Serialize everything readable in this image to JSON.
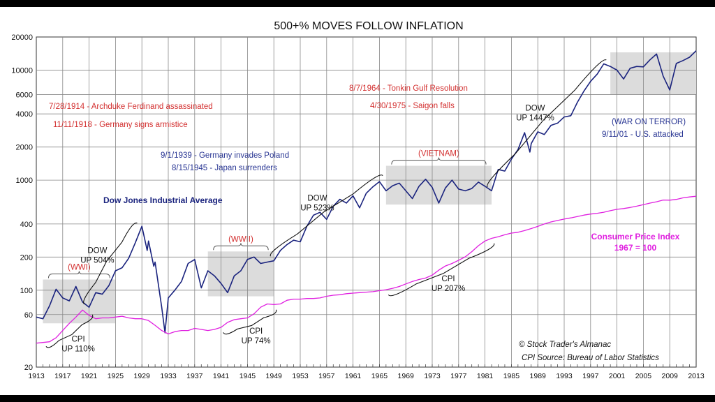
{
  "chart_data": {
    "type": "line",
    "title": "500+% MOVES FOLLOW INFLATION",
    "y_scale": "log",
    "ylim": [
      20,
      20000
    ],
    "xlim": [
      1913,
      2013
    ],
    "grid": true,
    "y_ticks": [
      20,
      60,
      100,
      200,
      400,
      1000,
      2000,
      4000,
      6000,
      10000,
      20000
    ],
    "x_ticks": [
      1913,
      1917,
      1921,
      1925,
      1929,
      1933,
      1937,
      1941,
      1945,
      1949,
      1953,
      1957,
      1961,
      1965,
      1969,
      1973,
      1977,
      1981,
      1985,
      1989,
      1993,
      1997,
      2001,
      2005,
      2009,
      2013
    ],
    "series": [
      {
        "name": "Dow Jones Industrial Average",
        "color": "#1a237e",
        "points": [
          [
            1913,
            57
          ],
          [
            1914,
            55
          ],
          [
            1915,
            72
          ],
          [
            1916,
            102
          ],
          [
            1917,
            85
          ],
          [
            1918,
            80
          ],
          [
            1919,
            108
          ],
          [
            1920,
            78
          ],
          [
            1921,
            70
          ],
          [
            1922,
            95
          ],
          [
            1923,
            92
          ],
          [
            1924,
            110
          ],
          [
            1925,
            150
          ],
          [
            1926,
            160
          ],
          [
            1927,
            195
          ],
          [
            1928,
            270
          ],
          [
            1929,
            381
          ],
          [
            1929.8,
            230
          ],
          [
            1930,
            280
          ],
          [
            1930.8,
            165
          ],
          [
            1931,
            180
          ],
          [
            1932,
            70
          ],
          [
            1932.5,
            41
          ],
          [
            1933,
            85
          ],
          [
            1934,
            100
          ],
          [
            1935,
            120
          ],
          [
            1936,
            175
          ],
          [
            1937,
            190
          ],
          [
            1938,
            105
          ],
          [
            1939,
            150
          ],
          [
            1940,
            135
          ],
          [
            1941,
            115
          ],
          [
            1942,
            95
          ],
          [
            1943,
            135
          ],
          [
            1944,
            150
          ],
          [
            1945,
            190
          ],
          [
            1946,
            200
          ],
          [
            1947,
            175
          ],
          [
            1948,
            180
          ],
          [
            1949,
            185
          ],
          [
            1950,
            230
          ],
          [
            1951,
            260
          ],
          [
            1952,
            285
          ],
          [
            1953,
            275
          ],
          [
            1954,
            380
          ],
          [
            1955,
            480
          ],
          [
            1956,
            510
          ],
          [
            1957,
            440
          ],
          [
            1958,
            580
          ],
          [
            1959,
            670
          ],
          [
            1960,
            620
          ],
          [
            1961,
            720
          ],
          [
            1962,
            560
          ],
          [
            1963,
            760
          ],
          [
            1964,
            870
          ],
          [
            1965,
            970
          ],
          [
            1966,
            800
          ],
          [
            1967,
            890
          ],
          [
            1968,
            940
          ],
          [
            1969,
            800
          ],
          [
            1970,
            680
          ],
          [
            1971,
            880
          ],
          [
            1972,
            1020
          ],
          [
            1973,
            860
          ],
          [
            1974,
            620
          ],
          [
            1975,
            850
          ],
          [
            1976,
            1000
          ],
          [
            1977,
            830
          ],
          [
            1978,
            800
          ],
          [
            1979,
            840
          ],
          [
            1980,
            960
          ],
          [
            1981,
            880
          ],
          [
            1982,
            800
          ],
          [
            1983,
            1250
          ],
          [
            1984,
            1210
          ],
          [
            1985,
            1550
          ],
          [
            1986,
            1900
          ],
          [
            1987,
            2700
          ],
          [
            1987.8,
            1800
          ],
          [
            1988,
            2150
          ],
          [
            1989,
            2750
          ],
          [
            1990,
            2600
          ],
          [
            1991,
            3150
          ],
          [
            1992,
            3300
          ],
          [
            1993,
            3750
          ],
          [
            1994,
            3850
          ],
          [
            1995,
            5100
          ],
          [
            1996,
            6450
          ],
          [
            1997,
            7900
          ],
          [
            1998,
            9200
          ],
          [
            1999,
            11400
          ],
          [
            2000,
            10800
          ],
          [
            2001,
            10000
          ],
          [
            2002,
            8300
          ],
          [
            2003,
            10400
          ],
          [
            2004,
            10800
          ],
          [
            2005,
            10700
          ],
          [
            2006,
            12400
          ],
          [
            2007,
            14000
          ],
          [
            2008,
            8800
          ],
          [
            2009,
            6600
          ],
          [
            2010,
            11500
          ],
          [
            2011,
            12200
          ],
          [
            2012,
            13100
          ],
          [
            2013,
            15000
          ]
        ]
      },
      {
        "name": "Consumer Price Index",
        "color": "#e020e0",
        "points": [
          [
            1913,
            33
          ],
          [
            1914,
            33.5
          ],
          [
            1915,
            34
          ],
          [
            1916,
            37
          ],
          [
            1917,
            43
          ],
          [
            1918,
            50
          ],
          [
            1919,
            57
          ],
          [
            1920,
            66
          ],
          [
            1921,
            59
          ],
          [
            1922,
            55
          ],
          [
            1923,
            56
          ],
          [
            1924,
            56
          ],
          [
            1925,
            57
          ],
          [
            1926,
            58
          ],
          [
            1927,
            56
          ],
          [
            1928,
            55
          ],
          [
            1929,
            55
          ],
          [
            1930,
            53
          ],
          [
            1931,
            48
          ],
          [
            1932,
            43
          ],
          [
            1933,
            40
          ],
          [
            1934,
            42
          ],
          [
            1935,
            43
          ],
          [
            1936,
            43
          ],
          [
            1937,
            45
          ],
          [
            1938,
            44
          ],
          [
            1939,
            43
          ],
          [
            1940,
            44
          ],
          [
            1941,
            46
          ],
          [
            1942,
            51
          ],
          [
            1943,
            54
          ],
          [
            1944,
            55
          ],
          [
            1945,
            56
          ],
          [
            1946,
            61
          ],
          [
            1947,
            70
          ],
          [
            1948,
            75
          ],
          [
            1949,
            74
          ],
          [
            1950,
            75
          ],
          [
            1951,
            81
          ],
          [
            1952,
            83
          ],
          [
            1953,
            83
          ],
          [
            1954,
            84
          ],
          [
            1955,
            84
          ],
          [
            1956,
            85
          ],
          [
            1957,
            88
          ],
          [
            1958,
            90
          ],
          [
            1959,
            91
          ],
          [
            1960,
            93
          ],
          [
            1961,
            94
          ],
          [
            1962,
            95
          ],
          [
            1963,
            96
          ],
          [
            1964,
            97
          ],
          [
            1965,
            99
          ],
          [
            1966,
            101
          ],
          [
            1967,
            104
          ],
          [
            1968,
            108
          ],
          [
            1969,
            114
          ],
          [
            1970,
            120
          ],
          [
            1971,
            125
          ],
          [
            1972,
            129
          ],
          [
            1973,
            137
          ],
          [
            1974,
            152
          ],
          [
            1975,
            166
          ],
          [
            1976,
            175
          ],
          [
            1977,
            187
          ],
          [
            1978,
            201
          ],
          [
            1979,
            224
          ],
          [
            1980,
            254
          ],
          [
            1981,
            280
          ],
          [
            1982,
            296
          ],
          [
            1983,
            306
          ],
          [
            1984,
            319
          ],
          [
            1985,
            330
          ],
          [
            1986,
            336
          ],
          [
            1987,
            348
          ],
          [
            1988,
            363
          ],
          [
            1989,
            380
          ],
          [
            1990,
            400
          ],
          [
            1991,
            417
          ],
          [
            1992,
            430
          ],
          [
            1993,
            443
          ],
          [
            1994,
            454
          ],
          [
            1995,
            467
          ],
          [
            1996,
            481
          ],
          [
            1997,
            492
          ],
          [
            1998,
            500
          ],
          [
            1999,
            511
          ],
          [
            2000,
            528
          ],
          [
            2001,
            543
          ],
          [
            2002,
            552
          ],
          [
            2003,
            564
          ],
          [
            2004,
            580
          ],
          [
            2005,
            599
          ],
          [
            2006,
            619
          ],
          [
            2007,
            636
          ],
          [
            2008,
            660
          ],
          [
            2009,
            658
          ],
          [
            2010,
            669
          ],
          [
            2011,
            690
          ],
          [
            2012,
            704
          ],
          [
            2013,
            714
          ]
        ]
      }
    ],
    "shaded_regions": [
      {
        "x0": 1914,
        "x1": 1925,
        "y0": 50,
        "y1": 125,
        "label": "(WWI)"
      },
      {
        "x0": 1939,
        "x1": 1949,
        "y0": 88,
        "y1": 225,
        "label": "(WWII)"
      },
      {
        "x0": 1966,
        "x1": 1982,
        "y0": 600,
        "y1": 1350,
        "label": "(VIETNAM)"
      },
      {
        "x0": 2000,
        "x1": 2013,
        "y0": 6000,
        "y1": 14500,
        "label": ""
      }
    ],
    "braces": [
      {
        "x0": 1921,
        "y0": 70,
        "x1": 1929,
        "y1": 381,
        "side": "above",
        "label": [
          "DOW",
          "UP 504%"
        ]
      },
      {
        "x0": 1914,
        "y0": 34,
        "x1": 1921,
        "y1": 66,
        "side": "below",
        "label": [
          "CPI",
          "UP 110%"
        ]
      },
      {
        "x0": 1949,
        "y0": 185,
        "x1": 1966,
        "y1": 1000,
        "side": "above",
        "label": [
          "DOW",
          "UP 523%"
        ]
      },
      {
        "x0": 1941,
        "y0": 46,
        "x1": 1949,
        "y1": 74,
        "side": "below",
        "label": [
          "CPI",
          "UP 74%"
        ]
      },
      {
        "x0": 1982,
        "y0": 800,
        "x1": 2000,
        "y1": 11400,
        "side": "above",
        "label": [
          "DOW",
          "UP 1447%"
        ]
      },
      {
        "x0": 1966,
        "y0": 101,
        "x1": 1982,
        "y1": 296,
        "side": "below",
        "label": [
          "CPI",
          "UP 207%"
        ]
      }
    ],
    "annotations": {
      "red": [
        "7/28/1914 - Archduke Ferdinand assassinated",
        "11/11/1918 - Germany signs armistice",
        "8/7/1964 - Tonkin Gulf Resolution",
        "4/30/1975 - Saigon falls"
      ],
      "blue": [
        "9/1/1939 - Germany invades Poland",
        "8/15/1945 - Japan surrenders",
        "(WAR ON TERROR)",
        "9/11/01 - U.S. attacked"
      ],
      "dow_label": "Dow Jones Industrial Average",
      "cpi_label": [
        "Consumer Price Index",
        "1967 = 100"
      ],
      "credits": [
        "© Stock Trader's Almanac",
        "CPI Source: Bureau of Labor Statistics"
      ]
    }
  }
}
